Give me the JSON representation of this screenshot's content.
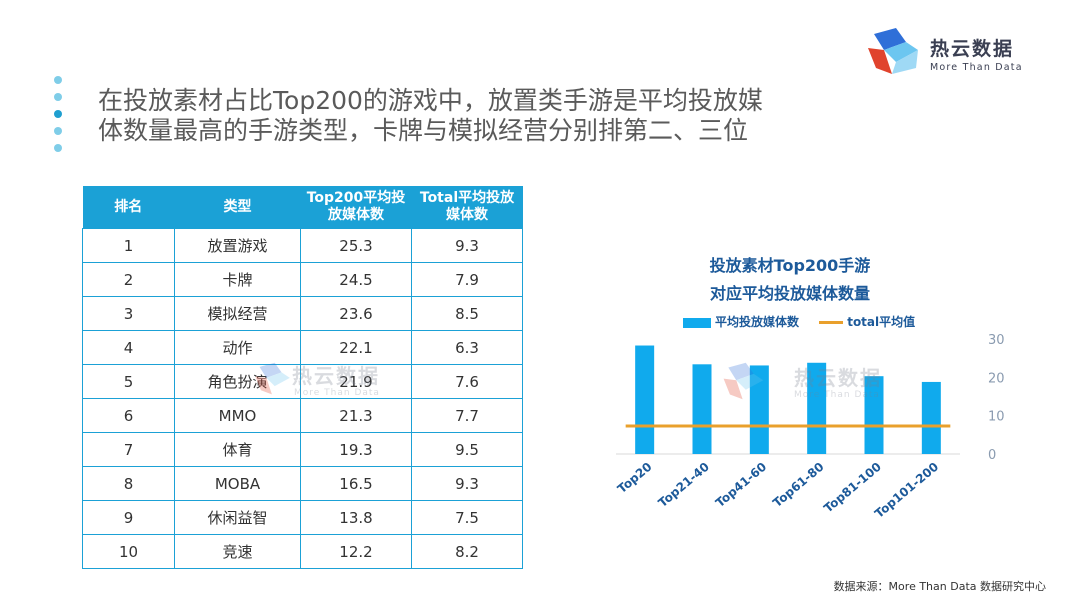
{
  "logo": {
    "name": "热云数据",
    "tagline": "More Than Data"
  },
  "title": {
    "line1": "在投放素材占比Top200的游戏中，放置类手游是平均投放媒",
    "line2": "体数量最高的手游类型，卡牌与模拟经营分别排第二、三位"
  },
  "table": {
    "headers": [
      "排名",
      "类型",
      "Top200平均投放媒体数",
      "Total平均投放媒体数"
    ],
    "headers_display": [
      [
        "排名"
      ],
      [
        "类型"
      ],
      [
        "Top200平均投",
        "放媒体数"
      ],
      [
        "Total平均投放",
        "媒体数"
      ]
    ],
    "rows": [
      [
        "1",
        "放置游戏",
        "25.3",
        "9.3"
      ],
      [
        "2",
        "卡牌",
        "24.5",
        "7.9"
      ],
      [
        "3",
        "模拟经营",
        "23.6",
        "8.5"
      ],
      [
        "4",
        "动作",
        "22.1",
        "6.3"
      ],
      [
        "5",
        "角色扮演",
        "21.9",
        "7.6"
      ],
      [
        "6",
        "MMO",
        "21.3",
        "7.7"
      ],
      [
        "7",
        "体育",
        "19.3",
        "9.5"
      ],
      [
        "8",
        "MOBA",
        "16.5",
        "9.3"
      ],
      [
        "9",
        "休闲益智",
        "13.8",
        "7.5"
      ],
      [
        "10",
        "竞速",
        "12.2",
        "8.2"
      ]
    ]
  },
  "chart_data": {
    "type": "bar",
    "title_line1": "投放素材Top200手游",
    "title_line2": "对应平均投放媒体数量",
    "categories": [
      "Top20",
      "Top21-40",
      "Top41-60",
      "Top61-80",
      "Top81-100",
      "Top101-200"
    ],
    "series": [
      {
        "name": "平均投放媒体数",
        "type": "bar",
        "color": "#10aaed",
        "values": [
          28.3,
          23.4,
          23.1,
          23.8,
          20.3,
          18.8
        ]
      },
      {
        "name": "total平均值",
        "type": "line",
        "color": "#e9a02c",
        "values": [
          7.3,
          7.3,
          7.3,
          7.3,
          7.3,
          7.3
        ]
      }
    ],
    "ylim": [
      0,
      30
    ],
    "yticks": [
      0,
      10,
      20,
      30
    ],
    "y_axis_side": "right",
    "legend_position": "top",
    "grid": false
  },
  "source": "数据来源：More Than Data 数据研究中心",
  "watermark": {
    "name": "热云数据",
    "tagline": "More Than Data"
  },
  "colors": {
    "accent": "#1ba1d6",
    "bar": "#10aaed",
    "line": "#e9a02c",
    "chart_title": "#1d5a9a"
  }
}
